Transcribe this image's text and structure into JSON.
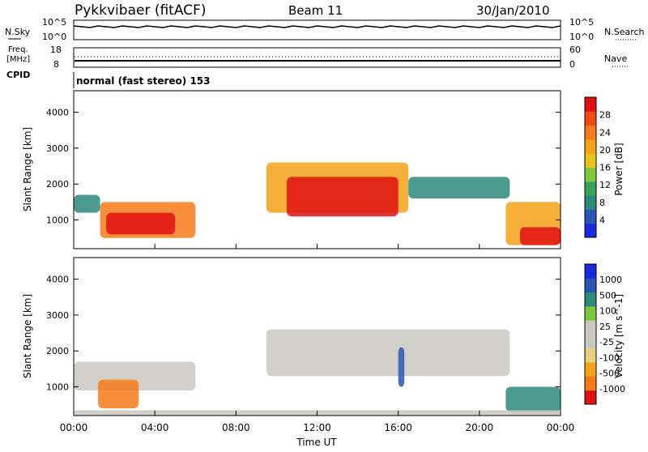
{
  "header": {
    "station": "Pykkvibaer (fitACF)",
    "beam": "Beam 11",
    "date": "30/Jan/2010"
  },
  "left_labels": {
    "nsky": "N.Sky",
    "freq_line1": "Freq.",
    "freq_line2": "[MHz]",
    "cpid": "CPID"
  },
  "right_labels": {
    "nsearch": "N.Search",
    "nave": "Nave"
  },
  "noise_axis": {
    "top": "10^5",
    "bottom": "10^0",
    "right_top": "10^5",
    "right_bottom": "10^0"
  },
  "freq_axis": {
    "top": "18",
    "bottom": "8",
    "right_top": "60",
    "right_bottom": "0"
  },
  "cpid_text": "normal (fast stereo) 153",
  "colors": {
    "power_scale": [
      "#1a28e0",
      "#2b55b5",
      "#2d8a7a",
      "#3aa35a",
      "#7cc83a",
      "#e6c21a",
      "#f4a21a",
      "#f47a1a",
      "#f04a14",
      "#e01010"
    ],
    "velocity_scale": [
      "#e01010",
      "#f47a1a",
      "#f4a21a",
      "#e6d080",
      "#c8c8c0",
      "#c8c8c0",
      "#7cc83a",
      "#2d8a7a",
      "#2b55b5",
      "#1a28e0"
    ]
  },
  "chart_data": [
    {
      "type": "heatmap",
      "panel": "power",
      "xlabel": "",
      "ylabel": "Slant Range [km]",
      "yticks": [
        "1000",
        "2000",
        "3000",
        "4000"
      ],
      "ylim": [
        200,
        4600
      ],
      "xlim": [
        0,
        24
      ],
      "colorbar_label": "Power [dB]",
      "colorbar_ticks": [
        "4",
        "8",
        "12",
        "16",
        "20",
        "24",
        "28"
      ],
      "patches": [
        {
          "t0": 0.0,
          "t1": 1.3,
          "r0": 1200,
          "r1": 1700,
          "v": 2
        },
        {
          "t0": 1.3,
          "t1": 6.0,
          "r0": 500,
          "r1": 1500,
          "v": 7
        },
        {
          "t0": 1.6,
          "t1": 5.0,
          "r0": 600,
          "r1": 1200,
          "v": 9
        },
        {
          "t0": 9.5,
          "t1": 16.5,
          "r0": 1200,
          "r1": 2600,
          "v": 6
        },
        {
          "t0": 10.5,
          "t1": 16.0,
          "r0": 1100,
          "r1": 2200,
          "v": 9
        },
        {
          "t0": 16.5,
          "t1": 21.5,
          "r0": 1600,
          "r1": 2200,
          "v": 2
        },
        {
          "t0": 21.3,
          "t1": 24.0,
          "r0": 300,
          "r1": 1500,
          "v": 6
        },
        {
          "t0": 22.0,
          "t1": 24.0,
          "r0": 300,
          "r1": 800,
          "v": 9
        }
      ]
    },
    {
      "type": "heatmap",
      "panel": "velocity",
      "xlabel": "Time UT",
      "ylabel": "Slant Range [km]",
      "yticks": [
        "1000",
        "2000",
        "3000",
        "4000"
      ],
      "ylim": [
        200,
        4600
      ],
      "xlim": [
        0,
        24
      ],
      "xticks": [
        "00:00",
        "04:00",
        "08:00",
        "12:00",
        "16:00",
        "20:00",
        "00:00"
      ],
      "colorbar_label": "Velocity [m s^-1]",
      "colorbar_ticks": [
        "1000",
        "500",
        "100",
        "25",
        "-25",
        "-100",
        "-500",
        "-1000"
      ],
      "patches": [
        {
          "t0": 0.0,
          "t1": 6.0,
          "r0": 900,
          "r1": 1700,
          "v": 4
        },
        {
          "t0": 1.2,
          "t1": 3.2,
          "r0": 400,
          "r1": 1200,
          "v": 1
        },
        {
          "t0": 9.5,
          "t1": 21.5,
          "r0": 1300,
          "r1": 2600,
          "v": 4
        },
        {
          "t0": 16.0,
          "t1": 16.3,
          "r0": 1000,
          "r1": 2100,
          "v": 8
        },
        {
          "t0": 21.3,
          "t1": 24.0,
          "r0": 300,
          "r1": 1000,
          "v": 7
        },
        {
          "t0": 0.0,
          "t1": 24.0,
          "r0": 200,
          "r1": 350,
          "v": 4
        }
      ]
    }
  ]
}
